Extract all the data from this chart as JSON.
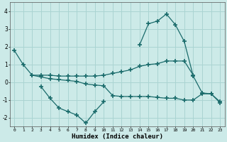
{
  "title": "",
  "xlabel": "Humidex (Indice chaleur)",
  "ylabel": "",
  "background_color": "#cceae8",
  "grid_color": "#aad4d2",
  "line_color": "#1a6b6b",
  "x": [
    0,
    1,
    2,
    3,
    4,
    5,
    6,
    7,
    8,
    9,
    10,
    11,
    12,
    13,
    14,
    15,
    16,
    17,
    18,
    19,
    20,
    21,
    22,
    23
  ],
  "line1": [
    1.8,
    1.0,
    0.4,
    0.4,
    0.4,
    0.35,
    0.35,
    0.35,
    0.35,
    0.35,
    0.4,
    0.5,
    0.6,
    0.7,
    0.9,
    1.0,
    1.05,
    1.2,
    1.2,
    1.2,
    0.4,
    null,
    null,
    null
  ],
  "line2": [
    null,
    null,
    0.4,
    0.3,
    0.2,
    0.15,
    0.1,
    0.05,
    -0.1,
    -0.15,
    -0.2,
    -0.75,
    -0.8,
    -0.8,
    -0.8,
    -0.8,
    -0.85,
    -0.9,
    -0.9,
    -1.0,
    -1.0,
    -0.65,
    -0.65,
    -1.1
  ],
  "line3": [
    null,
    null,
    null,
    -0.25,
    -0.9,
    -1.45,
    -1.65,
    -1.85,
    -2.3,
    -1.65,
    -1.1,
    null,
    null,
    null,
    2.1,
    3.3,
    3.45,
    3.85,
    3.25,
    2.3,
    0.35,
    -0.6,
    -0.65,
    -1.15
  ],
  "xlim": [
    -0.5,
    23.5
  ],
  "ylim": [
    -2.5,
    4.5
  ],
  "yticks": [
    -2,
    -1,
    0,
    1,
    2,
    3,
    4
  ],
  "xticks": [
    0,
    1,
    2,
    3,
    4,
    5,
    6,
    7,
    8,
    9,
    10,
    11,
    12,
    13,
    14,
    15,
    16,
    17,
    18,
    19,
    20,
    21,
    22,
    23
  ]
}
